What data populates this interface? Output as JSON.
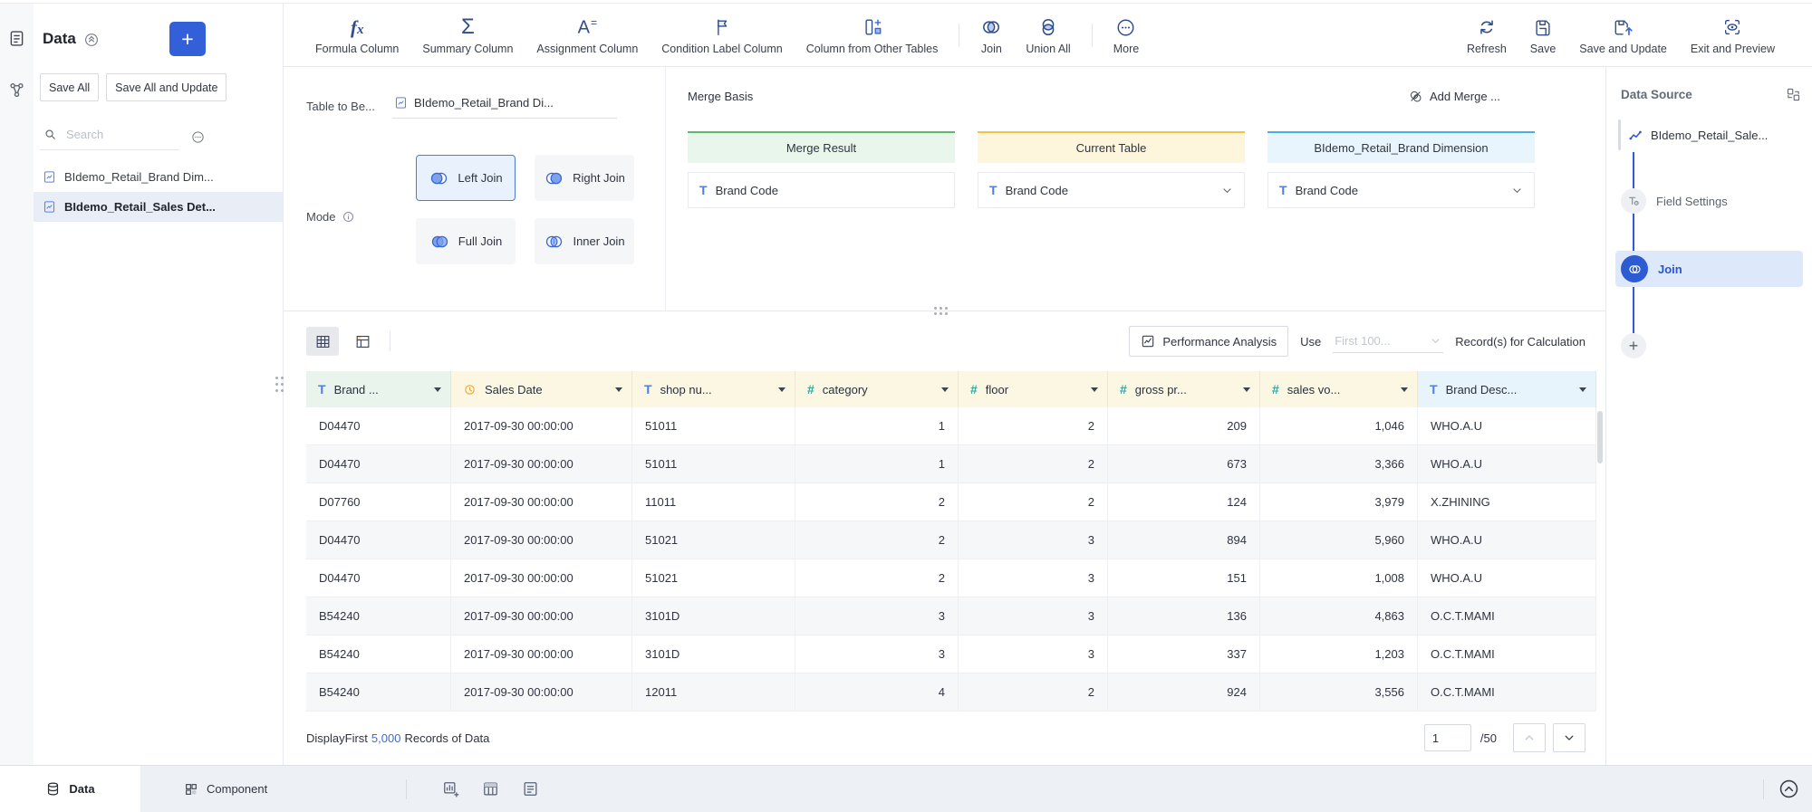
{
  "colors": {
    "primary_blue": "#3360d9",
    "toolbar_icon_navy": "#2f4d8a",
    "merge_result_green": "#5cb86a",
    "current_table_yellow": "#f2c243",
    "dimension_blue": "#45b0e8",
    "text_type_blue": "#4f7de0",
    "number_type_teal": "#2fa8a0",
    "date_type_orange": "#eba63f"
  },
  "rail": {
    "icons": [
      "data-list-icon",
      "relation-icon"
    ]
  },
  "sidebar": {
    "title": "Data",
    "save_all": "Save All",
    "save_all_update": "Save All and Update",
    "search_placeholder": "Search",
    "items": [
      {
        "label": "BIdemo_Retail_Brand Dim...",
        "icon": "doc-chart-icon",
        "selected": false
      },
      {
        "label": "BIdemo_Retail_Sales Det...",
        "icon": "doc-chart-icon",
        "selected": true
      }
    ]
  },
  "toolbar": {
    "left": [
      {
        "label": "Formula Column",
        "icon": "formula-icon"
      },
      {
        "label": "Summary Column",
        "icon": "sigma-icon"
      },
      {
        "label": "Assignment Column",
        "icon": "assignment-icon"
      },
      {
        "label": "Condition Label Column",
        "icon": "flag-icon"
      },
      {
        "label": "Column from Other Tables",
        "icon": "column-plus-icon"
      },
      {
        "label": "Join",
        "icon": "join-icon"
      },
      {
        "label": "Union All",
        "icon": "union-icon"
      },
      {
        "label": "More",
        "icon": "more-icon"
      }
    ],
    "right": [
      {
        "label": "Refresh",
        "icon": "refresh-icon"
      },
      {
        "label": "Save",
        "icon": "save-icon"
      },
      {
        "label": "Save and Update",
        "icon": "save-update-icon"
      },
      {
        "label": "Exit and Preview",
        "icon": "exit-preview-icon"
      }
    ]
  },
  "join_panel": {
    "table_label": "Table to Be...",
    "table_value": "BIdemo_Retail_Brand Di...",
    "mode_label": "Mode",
    "modes": [
      "Left Join",
      "Right Join",
      "Full Join",
      "Inner Join"
    ],
    "selected_mode": "Left Join"
  },
  "merge": {
    "label": "Merge Basis",
    "add_button": "Add Merge ...",
    "cards": [
      {
        "title": "Merge Result",
        "field": "Brand Code",
        "chevron": false,
        "tint": "green"
      },
      {
        "title": "Current Table",
        "field": "Brand Code",
        "chevron": true,
        "tint": "yellow"
      },
      {
        "title": "BIdemo_Retail_Brand Dimension",
        "field": "Brand Code",
        "chevron": true,
        "tint": "blue"
      }
    ]
  },
  "preview": {
    "performance_analysis": "Performance Analysis",
    "use_label": "Use",
    "records_select": "First 100...",
    "records_suffix": "Record(s) for Calculation",
    "display_prefix": "DisplayFirst",
    "display_count": "5,000",
    "display_suffix": "Records of Data",
    "page_value": "1",
    "page_total": "/50"
  },
  "table": {
    "columns": [
      {
        "label": "Brand ...",
        "type": "text",
        "tint": "green"
      },
      {
        "label": "Sales Date",
        "type": "date",
        "tint": "yellow"
      },
      {
        "label": "shop nu...",
        "type": "text",
        "tint": "yellow"
      },
      {
        "label": "category",
        "type": "number",
        "tint": "yellow"
      },
      {
        "label": "floor",
        "type": "number",
        "tint": "yellow"
      },
      {
        "label": "gross pr...",
        "type": "number",
        "tint": "yellow"
      },
      {
        "label": "sales vo...",
        "type": "number",
        "tint": "yellow"
      },
      {
        "label": "Brand Desc...",
        "type": "text",
        "tint": "blue"
      }
    ],
    "rows": [
      [
        "D04470",
        "2017-09-30 00:00:00",
        "51011",
        "1",
        "2",
        "209",
        "1,046",
        "WHO.A.U"
      ],
      [
        "D04470",
        "2017-09-30 00:00:00",
        "51011",
        "1",
        "2",
        "673",
        "3,366",
        "WHO.A.U"
      ],
      [
        "D07760",
        "2017-09-30 00:00:00",
        "11011",
        "2",
        "2",
        "124",
        "3,979",
        "X.ZHINING"
      ],
      [
        "D04470",
        "2017-09-30 00:00:00",
        "51021",
        "2",
        "3",
        "894",
        "5,960",
        "WHO.A.U"
      ],
      [
        "D04470",
        "2017-09-30 00:00:00",
        "51021",
        "2",
        "3",
        "151",
        "1,008",
        "WHO.A.U"
      ],
      [
        "B54240",
        "2017-09-30 00:00:00",
        "3101D",
        "3",
        "3",
        "136",
        "4,863",
        "O.C.T.MAMI"
      ],
      [
        "B54240",
        "2017-09-30 00:00:00",
        "3101D",
        "3",
        "3",
        "337",
        "1,203",
        "O.C.T.MAMI"
      ],
      [
        "B54240",
        "2017-09-30 00:00:00",
        "12011",
        "4",
        "2",
        "924",
        "3,556",
        "O.C.T.MAMI"
      ]
    ]
  },
  "right_panel": {
    "title": "Data Source",
    "nodes": [
      {
        "label": "BIdemo_Retail_Sale...",
        "icon": "line-chart-icon",
        "selected": false
      },
      {
        "label": "Field Settings",
        "icon": "field-settings-icon",
        "selected": false
      },
      {
        "label": "Join",
        "icon": "join-node-icon",
        "selected": true
      }
    ],
    "add_label": "+"
  },
  "bottom_bar": {
    "tabs": [
      {
        "label": "Data",
        "icon": "database-icon",
        "active": true
      },
      {
        "label": "Component",
        "icon": "component-icon",
        "active": false
      }
    ],
    "insert_icons": [
      "insert-chart-icon",
      "insert-table-icon",
      "insert-filter-icon"
    ]
  }
}
